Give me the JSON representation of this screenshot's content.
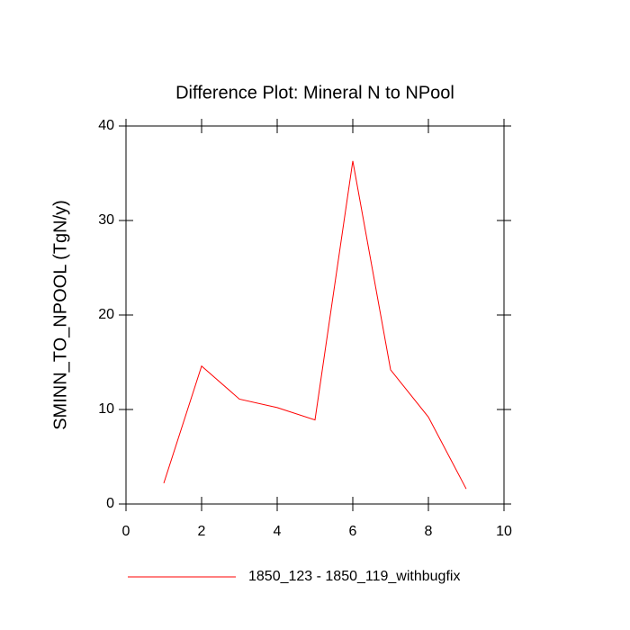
{
  "chart_data": {
    "type": "line",
    "title": "Difference Plot: Mineral N to NPool",
    "y_label": "SMINN_TO_NPOOL  (TgN/y)",
    "x": [
      1,
      2,
      3,
      4,
      5,
      6,
      7,
      8,
      9
    ],
    "series": [
      {
        "name": "1850_123 - 1850_119_withbugfix",
        "color": "#ff0000",
        "values": [
          2.2,
          14.6,
          11.1,
          10.2,
          8.9,
          36.3,
          14.2,
          9.2,
          1.6
        ]
      }
    ],
    "xlim": [
      0,
      10
    ],
    "xticks": [
      0,
      2,
      4,
      6,
      8,
      10
    ],
    "ylim": [
      0,
      40
    ],
    "yticks": [
      0,
      10,
      20,
      30,
      40
    ],
    "grid": false,
    "legend": "bottom"
  }
}
